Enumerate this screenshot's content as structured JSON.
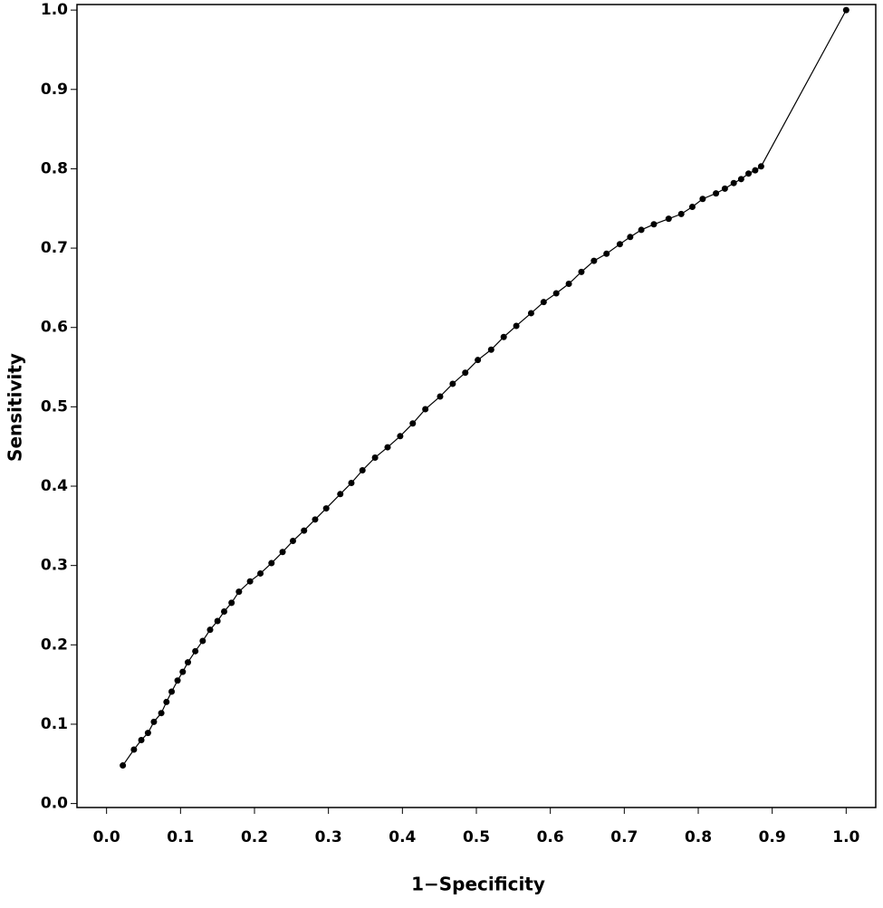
{
  "chart_data": {
    "type": "line",
    "xlabel": "1−Specificity",
    "ylabel": "Sensitivity",
    "x": [
      0.022,
      0.037,
      0.047,
      0.056,
      0.064,
      0.074,
      0.081,
      0.088,
      0.096,
      0.103,
      0.11,
      0.12,
      0.13,
      0.14,
      0.15,
      0.159,
      0.169,
      0.179,
      0.194,
      0.208,
      0.223,
      0.238,
      0.252,
      0.267,
      0.282,
      0.297,
      0.316,
      0.331,
      0.346,
      0.363,
      0.38,
      0.397,
      0.414,
      0.431,
      0.451,
      0.468,
      0.485,
      0.502,
      0.52,
      0.537,
      0.554,
      0.574,
      0.591,
      0.608,
      0.625,
      0.642,
      0.659,
      0.676,
      0.694,
      0.708,
      0.723,
      0.74,
      0.76,
      0.777,
      0.792,
      0.806,
      0.824,
      0.836,
      0.848,
      0.858,
      0.868,
      0.877,
      0.885,
      1.0
    ],
    "series": [
      {
        "color": "#000000",
        "values": [
          0.048,
          0.068,
          0.08,
          0.089,
          0.103,
          0.114,
          0.128,
          0.141,
          0.155,
          0.166,
          0.178,
          0.192,
          0.205,
          0.219,
          0.23,
          0.242,
          0.253,
          0.267,
          0.28,
          0.29,
          0.303,
          0.317,
          0.331,
          0.344,
          0.358,
          0.372,
          0.39,
          0.404,
          0.42,
          0.436,
          0.449,
          0.463,
          0.479,
          0.497,
          0.513,
          0.529,
          0.543,
          0.559,
          0.572,
          0.588,
          0.602,
          0.618,
          0.632,
          0.643,
          0.655,
          0.67,
          0.684,
          0.693,
          0.705,
          0.714,
          0.723,
          0.73,
          0.737,
          0.743,
          0.752,
          0.762,
          0.769,
          0.775,
          0.782,
          0.787,
          0.794,
          0.798,
          0.803,
          1.0
        ]
      }
    ],
    "xlim": [
      -0.04,
      1.04
    ],
    "ylim": [
      -0.005,
      1.007
    ],
    "xticks": [
      {
        "value": 0,
        "label": "0.0"
      },
      0.1,
      0.2,
      0.3,
      0.4,
      0.5,
      0.6,
      0.7,
      0.8,
      0.9,
      {
        "value": 1,
        "label": "1.0"
      }
    ],
    "yticks": [
      {
        "value": 0,
        "label": "0.0"
      },
      0.1,
      0.2,
      0.3,
      0.4,
      0.5,
      0.6,
      0.7,
      0.8,
      0.9,
      {
        "value": 1,
        "label": "1.0"
      }
    ]
  }
}
